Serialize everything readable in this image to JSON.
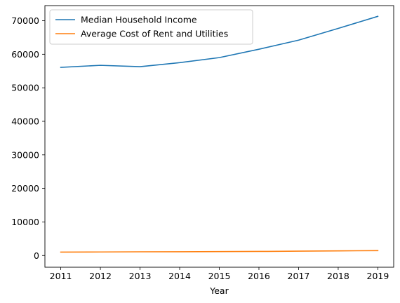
{
  "chart_data": {
    "type": "line",
    "title": "",
    "xlabel": "Year",
    "ylabel": "",
    "x": [
      2011,
      2012,
      2013,
      2014,
      2015,
      2016,
      2017,
      2018,
      2019
    ],
    "xlim": [
      2010.6,
      2019.4
    ],
    "ylim": [
      -3500,
      74500
    ],
    "x_ticks": [
      "2011",
      "2012",
      "2013",
      "2014",
      "2015",
      "2016",
      "2017",
      "2018",
      "2019"
    ],
    "y_ticks": [
      "0",
      "10000",
      "20000",
      "30000",
      "40000",
      "50000",
      "60000",
      "70000"
    ],
    "grid": false,
    "legend_position": "upper-left",
    "series": [
      {
        "name": "Median Household Income",
        "color": "#1f77b4",
        "values": [
          56100,
          56700,
          56300,
          57500,
          59000,
          61500,
          64200,
          67700,
          71300
        ]
      },
      {
        "name": "Average Cost of Rent and Utilities",
        "color": "#ff7f0e",
        "values": [
          1000,
          1050,
          1100,
          1120,
          1160,
          1210,
          1290,
          1380,
          1450
        ]
      }
    ]
  }
}
